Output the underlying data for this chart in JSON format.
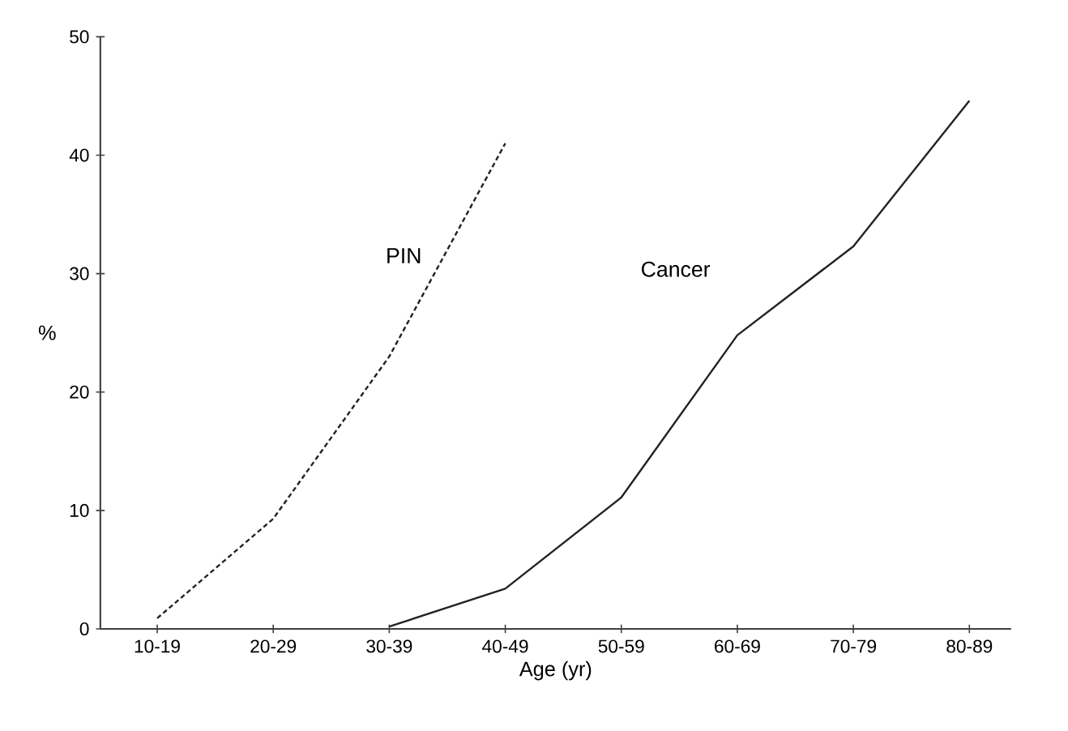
{
  "chart_data": {
    "type": "line",
    "xlabel": "Age (yr)",
    "ylabel": "%",
    "categories": [
      "10-19",
      "20-29",
      "30-39",
      "40-49",
      "50-59",
      "60-69",
      "70-79",
      "80-89"
    ],
    "ylim": [
      0,
      50
    ],
    "yticks": [
      0,
      10,
      20,
      30,
      40,
      50
    ],
    "grid": false,
    "legend": false,
    "marker": "none",
    "series": [
      {
        "name": "PIN",
        "color": "#222222",
        "line_style": "dashed",
        "values": [
          0.9,
          9.3,
          23.0,
          41.0,
          null,
          null,
          null,
          null
        ]
      },
      {
        "name": "Cancer",
        "color": "#222222",
        "line_style": "solid",
        "values": [
          null,
          null,
          0.2,
          3.4,
          11.1,
          24.8,
          32.3,
          44.6
        ]
      }
    ]
  }
}
